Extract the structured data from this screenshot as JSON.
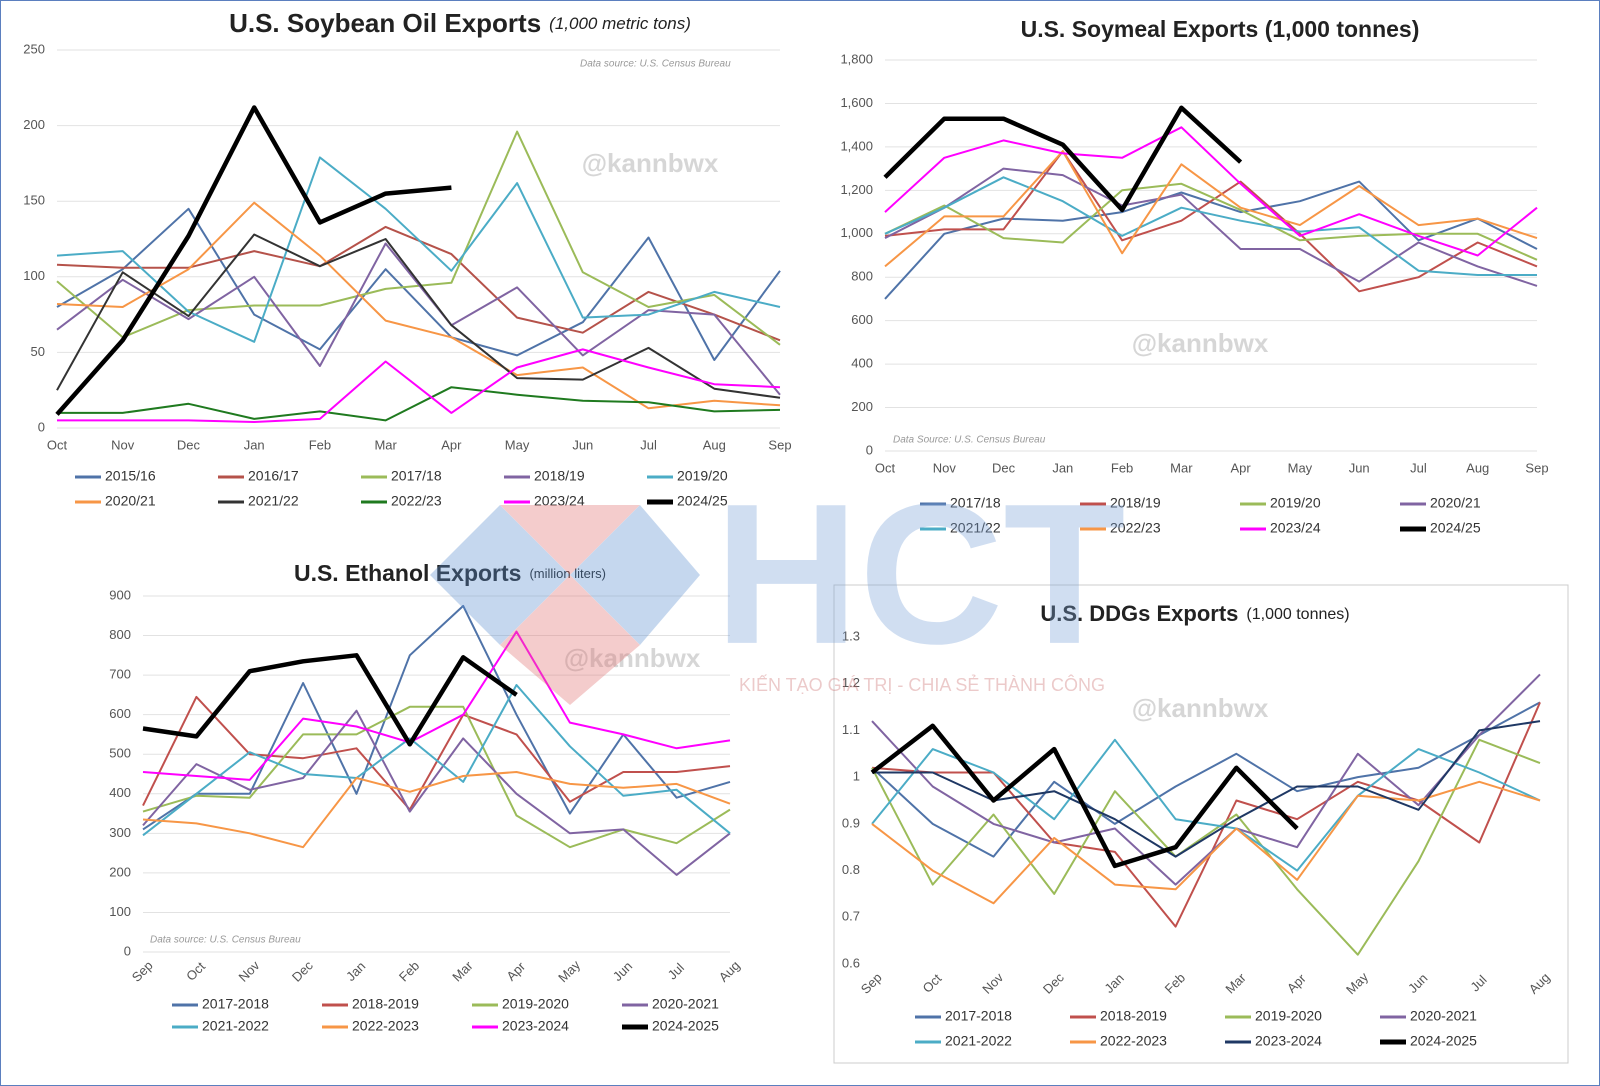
{
  "chart_data": [
    {
      "type": "line",
      "title": "U.S. Soybean Oil Exports",
      "subtitle": "(1,000 metric tons)",
      "source": "Data source: U.S. Census Bureau",
      "watermark": "@kannbwx",
      "categories": [
        "Oct",
        "Nov",
        "Dec",
        "Jan",
        "Feb",
        "Mar",
        "Apr",
        "May",
        "Jun",
        "Jul",
        "Aug",
        "Sep"
      ],
      "ylim": [
        0,
        250
      ],
      "yticks": [
        0,
        50,
        100,
        150,
        200,
        250
      ],
      "grid": true,
      "series": [
        {
          "name": "2015/16",
          "color": "#4f73a8",
          "values": [
            80,
            105,
            145,
            75,
            52,
            105,
            60,
            48,
            70,
            126,
            45,
            104
          ]
        },
        {
          "name": "2016/17",
          "color": "#b5524a",
          "values": [
            108,
            106,
            106,
            117,
            107,
            133,
            115,
            73,
            63,
            90,
            75,
            58
          ]
        },
        {
          "name": "2017/18",
          "color": "#9bbb59",
          "values": [
            97,
            60,
            78,
            81,
            81,
            92,
            96,
            196,
            103,
            80,
            88,
            55
          ]
        },
        {
          "name": "2018/19",
          "color": "#8064a2",
          "values": [
            65,
            98,
            72,
            100,
            41,
            122,
            68,
            93,
            48,
            78,
            75,
            22
          ]
        },
        {
          "name": "2019/20",
          "color": "#4bacc6",
          "values": [
            114,
            117,
            77,
            57,
            179,
            145,
            104,
            162,
            73,
            75,
            90,
            80
          ]
        },
        {
          "name": "2020/21",
          "color": "#f79646",
          "values": [
            82,
            80,
            105,
            149,
            114,
            71,
            60,
            35,
            40,
            13,
            18,
            15
          ]
        },
        {
          "name": "2021/22",
          "color": "#333333",
          "values": [
            25,
            103,
            74,
            128,
            107,
            125,
            68,
            33,
            32,
            53,
            26,
            20
          ]
        },
        {
          "name": "2022/23",
          "color": "#1f7a1f",
          "values": [
            10,
            10,
            16,
            6,
            11,
            5,
            27,
            22,
            18,
            17,
            11,
            12
          ]
        },
        {
          "name": "2023/24",
          "color": "#ff00ff",
          "values": [
            5,
            5,
            5,
            4,
            6,
            44,
            10,
            40,
            52,
            40,
            29,
            27
          ]
        },
        {
          "name": "2024/25",
          "color": "#000000",
          "values": [
            9,
            58,
            127,
            212,
            136,
            155,
            159,
            null,
            null,
            null,
            null,
            null
          ]
        }
      ]
    },
    {
      "type": "line",
      "title": "U.S. Soymeal Exports (1,000 tonnes)",
      "source": "Data Source: U.S. Census Bureau",
      "watermark": "@kannbwx",
      "categories": [
        "Oct",
        "Nov",
        "Dec",
        "Jan",
        "Feb",
        "Mar",
        "Apr",
        "May",
        "Jun",
        "Jul",
        "Aug",
        "Sep"
      ],
      "ylim": [
        0,
        1800
      ],
      "yticks": [
        0,
        200,
        400,
        600,
        800,
        {
          "value": 1000,
          "label": "1,000"
        },
        {
          "value": 1200,
          "label": "1,200"
        },
        {
          "value": 1400,
          "label": "1,400"
        },
        {
          "value": 1600,
          "label": "1,600"
        },
        {
          "value": 1800,
          "label": "1,800"
        }
      ],
      "grid": true,
      "series": [
        {
          "name": "2017/18",
          "color": "#4f73a8",
          "values": [
            700,
            1000,
            1070,
            1060,
            1100,
            1190,
            1100,
            1150,
            1240,
            970,
            1070,
            930
          ]
        },
        {
          "name": "2018/19",
          "color": "#c0504d",
          "values": [
            990,
            1020,
            1020,
            1380,
            970,
            1060,
            1240,
            1000,
            735,
            800,
            960,
            850
          ]
        },
        {
          "name": "2019/20",
          "color": "#9bbb59",
          "values": [
            1000,
            1130,
            980,
            960,
            1200,
            1230,
            1110,
            970,
            990,
            1000,
            1000,
            880
          ]
        },
        {
          "name": "2020/21",
          "color": "#8064a2",
          "values": [
            980,
            1120,
            1300,
            1270,
            1130,
            1180,
            930,
            930,
            780,
            960,
            850,
            760
          ]
        },
        {
          "name": "2021/22",
          "color": "#4bacc6",
          "values": [
            1000,
            1120,
            1260,
            1150,
            990,
            1120,
            1060,
            1010,
            1030,
            830,
            810,
            810
          ]
        },
        {
          "name": "2022/23",
          "color": "#f79646",
          "values": [
            850,
            1080,
            1080,
            1380,
            910,
            1320,
            1120,
            1040,
            1220,
            1040,
            1070,
            980
          ]
        },
        {
          "name": "2023/24",
          "color": "#ff00ff",
          "values": [
            1100,
            1350,
            1430,
            1370,
            1350,
            1490,
            1230,
            990,
            1090,
            990,
            900,
            1120
          ]
        },
        {
          "name": "2024/25",
          "color": "#000000",
          "values": [
            1260,
            1530,
            1530,
            1410,
            1110,
            1580,
            1330,
            null,
            null,
            null,
            null,
            null
          ]
        }
      ]
    },
    {
      "type": "line",
      "title": "U.S. Ethanol Exports",
      "subtitle": "(million liters)",
      "source": "Data source: U.S. Census Bureau",
      "watermark": "@kannbwx",
      "categories": [
        "Sep",
        "Oct",
        "Nov",
        "Dec",
        "Jan",
        "Feb",
        "Mar",
        "Apr",
        "May",
        "Jun",
        "Jul",
        "Aug"
      ],
      "ylim": [
        0,
        900
      ],
      "yticks": [
        0,
        100,
        200,
        300,
        400,
        500,
        600,
        700,
        800,
        900
      ],
      "grid": true,
      "series": [
        {
          "name": "2017-2018",
          "color": "#4f73a8",
          "values": [
            310,
            400,
            400,
            680,
            400,
            750,
            875,
            600,
            350,
            550,
            390,
            430
          ]
        },
        {
          "name": "2018-2019",
          "color": "#c0504d",
          "values": [
            370,
            645,
            500,
            490,
            515,
            360,
            600,
            550,
            380,
            455,
            455,
            470
          ]
        },
        {
          "name": "2019-2020",
          "color": "#9bbb59",
          "values": [
            355,
            395,
            390,
            550,
            550,
            620,
            620,
            345,
            265,
            310,
            275,
            360
          ]
        },
        {
          "name": "2020-2021",
          "color": "#8064a2",
          "values": [
            320,
            475,
            410,
            440,
            610,
            355,
            540,
            400,
            300,
            310,
            195,
            300
          ]
        },
        {
          "name": "2021-2022",
          "color": "#4bacc6",
          "values": [
            295,
            400,
            505,
            450,
            440,
            540,
            430,
            675,
            520,
            395,
            410,
            300
          ]
        },
        {
          "name": "2022-2023",
          "color": "#f79646",
          "values": [
            335,
            325,
            300,
            265,
            440,
            405,
            445,
            455,
            425,
            415,
            425,
            375
          ]
        },
        {
          "name": "2023-2024",
          "color": "#ff00ff",
          "values": [
            455,
            445,
            435,
            590,
            570,
            530,
            600,
            810,
            580,
            550,
            515,
            535
          ]
        },
        {
          "name": "2024-2025",
          "color": "#000000",
          "values": [
            565,
            545,
            710,
            735,
            750,
            525,
            745,
            650,
            null,
            null,
            null,
            null
          ]
        }
      ]
    },
    {
      "type": "line",
      "title": "U.S. DDGs Exports",
      "subtitle": "(1,000 tonnes)",
      "watermark": "@kannbwx",
      "categories": [
        "Sep",
        "Oct",
        "Nov",
        "Dec",
        "Jan",
        "Feb",
        "Mar",
        "Apr",
        "May",
        "Jun",
        "Jul",
        "Aug"
      ],
      "ylim": [
        0.6,
        1.3
      ],
      "yticks": [
        0.6,
        0.7,
        0.8,
        0.9,
        1,
        1.1,
        1.2,
        1.3
      ],
      "grid": false,
      "series": [
        {
          "name": "2017-2018",
          "color": "#4f73a8",
          "values": [
            1.02,
            0.9,
            0.83,
            0.99,
            0.9,
            0.98,
            1.05,
            0.97,
            1.0,
            1.02,
            1.09,
            1.16
          ]
        },
        {
          "name": "2018-2019",
          "color": "#c0504d",
          "values": [
            1.02,
            1.01,
            1.01,
            0.86,
            0.84,
            0.68,
            0.95,
            0.91,
            0.99,
            0.95,
            0.86,
            1.16
          ]
        },
        {
          "name": "2019-2020",
          "color": "#9bbb59",
          "values": [
            1.02,
            0.77,
            0.92,
            0.75,
            0.97,
            0.83,
            0.92,
            0.76,
            0.62,
            0.82,
            1.08,
            1.03
          ]
        },
        {
          "name": "2020-2021",
          "color": "#8064a2",
          "values": [
            1.12,
            0.98,
            0.9,
            0.86,
            0.89,
            0.77,
            0.89,
            0.85,
            1.05,
            0.94,
            1.09,
            1.22
          ]
        },
        {
          "name": "2021-2022",
          "color": "#4bacc6",
          "values": [
            0.9,
            1.06,
            1.01,
            0.91,
            1.08,
            0.91,
            0.89,
            0.8,
            0.96,
            1.06,
            1.01,
            0.95
          ]
        },
        {
          "name": "2022-2023",
          "color": "#f79646",
          "values": [
            0.9,
            0.8,
            0.73,
            0.87,
            0.77,
            0.76,
            0.89,
            0.78,
            0.96,
            0.95,
            0.99,
            0.95
          ]
        },
        {
          "name": "2023-2024",
          "color": "#1f3864",
          "values": [
            1.01,
            1.01,
            0.95,
            0.97,
            0.91,
            0.83,
            0.91,
            0.98,
            0.98,
            0.93,
            1.1,
            1.12
          ]
        },
        {
          "name": "2024-2025",
          "color": "#000000",
          "values": [
            1.01,
            1.11,
            0.95,
            1.06,
            0.81,
            0.85,
            1.02,
            0.89,
            null,
            null,
            null,
            null
          ]
        }
      ]
    }
  ],
  "logo": {
    "name": "HCT",
    "tagline": "KIẾN TẠO GIÁ TRỊ - CHIA SẺ THÀNH CÔNG"
  }
}
